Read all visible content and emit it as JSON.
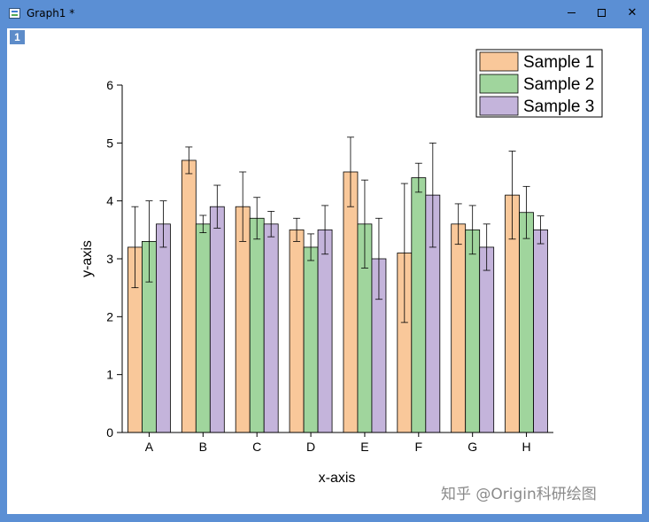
{
  "window": {
    "title": "Graph1 *",
    "layer_label": "1",
    "minimize_label": "minimize",
    "maximize_label": "maximize",
    "close_glyph": "✕"
  },
  "watermark": "知乎 @Origin科研绘图",
  "chart_data": {
    "type": "bar",
    "title": "",
    "xlabel": "x-axis",
    "ylabel": "y-axis",
    "ylim": [
      0,
      6
    ],
    "yticks": [
      0,
      1,
      2,
      3,
      4,
      5,
      6
    ],
    "legend_position": "top-right",
    "categories": [
      "A",
      "B",
      "C",
      "D",
      "E",
      "F",
      "G",
      "H"
    ],
    "series": [
      {
        "name": "Sample 1",
        "color": "#f9c89a",
        "values": [
          3.2,
          4.7,
          3.9,
          3.5,
          4.5,
          3.1,
          3.6,
          4.1
        ],
        "errors": [
          0.7,
          0.23,
          0.6,
          0.2,
          0.6,
          1.2,
          0.35,
          0.76
        ]
      },
      {
        "name": "Sample 2",
        "color": "#a0d59d",
        "values": [
          3.3,
          3.6,
          3.7,
          3.2,
          3.6,
          4.4,
          3.5,
          3.8
        ],
        "errors": [
          0.7,
          0.15,
          0.36,
          0.23,
          0.76,
          0.25,
          0.42,
          0.45
        ]
      },
      {
        "name": "Sample 3",
        "color": "#c4b4db",
        "values": [
          3.6,
          3.9,
          3.6,
          3.5,
          3.0,
          4.1,
          3.2,
          3.5
        ],
        "errors": [
          0.4,
          0.37,
          0.22,
          0.42,
          0.7,
          0.9,
          0.4,
          0.24
        ]
      }
    ]
  }
}
